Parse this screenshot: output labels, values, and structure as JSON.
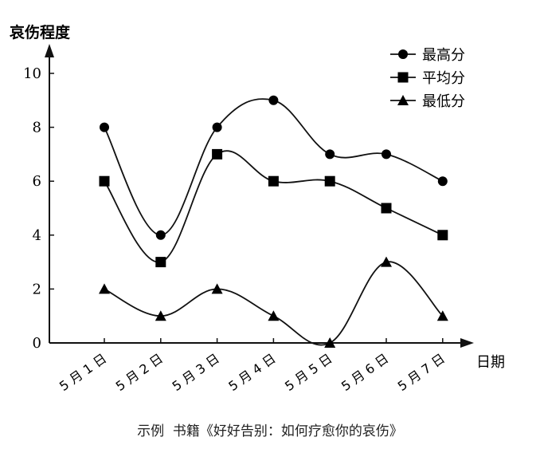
{
  "chart_data": {
    "type": "line",
    "title": "",
    "ylabel": "哀伤程度",
    "xlabel": "日期",
    "categories": [
      "5月1日",
      "5月2日",
      "5月3日",
      "5月4日",
      "5月5日",
      "5月6日",
      "5月7日"
    ],
    "category_tick_labels": [
      "5 月 1 日",
      "5 月 2 日",
      "5 月 3 日",
      "5 月 4 日",
      "5 月 5 日",
      "5 月 6 日",
      "5 月 7 日"
    ],
    "yticks": [
      0,
      2,
      4,
      6,
      8,
      10
    ],
    "ylim": [
      0,
      10.5
    ],
    "grid": false,
    "legend_position": "top-right",
    "smooth": true,
    "series": [
      {
        "name": "最高分",
        "marker": "circle",
        "values": [
          8,
          4,
          8,
          9,
          7,
          7,
          6
        ]
      },
      {
        "name": "平均分",
        "marker": "square",
        "values": [
          6,
          3,
          7,
          6,
          6,
          5,
          4
        ]
      },
      {
        "name": "最低分",
        "marker": "triangle",
        "values": [
          2,
          1,
          2,
          1,
          0,
          3,
          1
        ]
      }
    ],
    "colors": {
      "line": "#111111",
      "marker": "#000000",
      "axis": "#111111"
    }
  },
  "caption": {
    "prefix": "示例",
    "text": "书籍《好好告别：如何疗愈你的哀伤》"
  }
}
